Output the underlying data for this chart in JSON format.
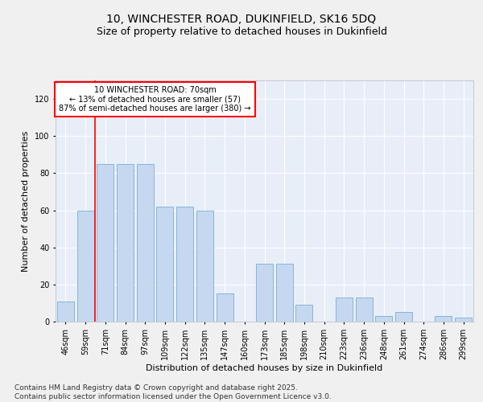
{
  "title1": "10, WINCHESTER ROAD, DUKINFIELD, SK16 5DQ",
  "title2": "Size of property relative to detached houses in Dukinfield",
  "xlabel": "Distribution of detached houses by size in Dukinfield",
  "ylabel": "Number of detached properties",
  "categories": [
    "46sqm",
    "59sqm",
    "71sqm",
    "84sqm",
    "97sqm",
    "109sqm",
    "122sqm",
    "135sqm",
    "147sqm",
    "160sqm",
    "173sqm",
    "185sqm",
    "198sqm",
    "210sqm",
    "223sqm",
    "236sqm",
    "248sqm",
    "261sqm",
    "274sqm",
    "286sqm",
    "299sqm"
  ],
  "bar_heights": [
    11,
    60,
    85,
    85,
    85,
    62,
    62,
    60,
    15,
    0,
    31,
    31,
    9,
    0,
    13,
    13,
    3,
    5,
    0,
    3,
    2
  ],
  "ylim": [
    0,
    130
  ],
  "yticks": [
    0,
    20,
    40,
    60,
    80,
    100,
    120
  ],
  "bar_color": "#c5d8f0",
  "bar_edge_color": "#7aadd4",
  "red_line_index": 2,
  "annotation_text": "10 WINCHESTER ROAD: 70sqm\n← 13% of detached houses are smaller (57)\n87% of semi-detached houses are larger (380) →",
  "footer": "Contains HM Land Registry data © Crown copyright and database right 2025.\nContains public sector information licensed under the Open Government Licence v3.0.",
  "bg_color": "#e8eef8",
  "grid_color": "#ffffff",
  "fig_bg_color": "#f0f0f0",
  "title_fontsize": 10,
  "subtitle_fontsize": 9,
  "axis_label_fontsize": 8,
  "tick_fontsize": 7,
  "footer_fontsize": 6.5
}
